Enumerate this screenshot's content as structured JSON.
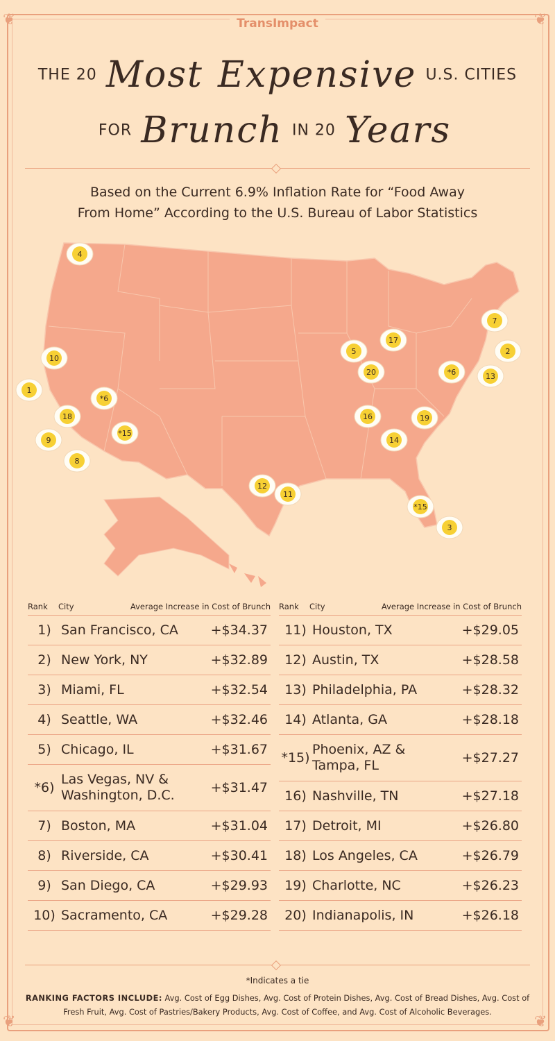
{
  "brand": "TransImpact",
  "title": {
    "line1_pre": "THE 20",
    "line1_script1": "Most",
    "line1_script2": "Expensive",
    "line1_post": "U.S. CITIES",
    "line2_pre": "FOR",
    "line2_script1": "Brunch",
    "line2_mid": "IN 20",
    "line2_script2": "Years"
  },
  "subtitle": {
    "line1": "Based on the Current 6.9% Inflation Rate for “Food Away",
    "line2": "From Home” According to the U.S. Bureau of Labor Statistics"
  },
  "map_markers": [
    "4",
    "7",
    "10",
    "1",
    "2",
    "5",
    "17",
    "20",
    "*6",
    "13",
    "*6",
    "18",
    "9",
    "8",
    "*15",
    "16",
    "19",
    "14",
    "12",
    "11",
    "*15",
    "3"
  ],
  "table_headers": {
    "rank": "Rank",
    "city": "City",
    "increase": "Average Increase in Cost of Brunch"
  },
  "left_rows": [
    {
      "rank": "1)",
      "city": "San Francisco, CA",
      "value": "+$34.37"
    },
    {
      "rank": "2)",
      "city": "New York, NY",
      "value": "+$32.89"
    },
    {
      "rank": "3)",
      "city": "Miami, FL",
      "value": "+$32.54"
    },
    {
      "rank": "4)",
      "city": "Seattle, WA",
      "value": "+$32.46"
    },
    {
      "rank": "5)",
      "city": "Chicago, IL",
      "value": "+$31.67"
    },
    {
      "rank": "*6)",
      "city": "Las Vegas, NV &",
      "city2": "Washington, D.C.",
      "value": "+$31.47"
    },
    {
      "rank": "7)",
      "city": "Boston, MA",
      "value": "+$31.04"
    },
    {
      "rank": "8)",
      "city": "Riverside, CA",
      "value": "+$30.41"
    },
    {
      "rank": "9)",
      "city": "San Diego, CA",
      "value": "+$29.93"
    },
    {
      "rank": "10)",
      "city": "Sacramento, CA",
      "value": "+$29.28"
    }
  ],
  "right_rows": [
    {
      "rank": "11)",
      "city": "Houston, TX",
      "value": "+$29.05"
    },
    {
      "rank": "12)",
      "city": "Austin, TX",
      "value": "+$28.58"
    },
    {
      "rank": "13)",
      "city": "Philadelphia, PA",
      "value": "+$28.32"
    },
    {
      "rank": "14)",
      "city": "Atlanta, GA",
      "value": "+$28.18"
    },
    {
      "rank": "*15)",
      "city": "Phoenix, AZ &",
      "city2": "Tampa, FL",
      "value": "+$27.27"
    },
    {
      "rank": "16)",
      "city": "Nashville, TN",
      "value": "+$27.18"
    },
    {
      "rank": "17)",
      "city": "Detroit, MI",
      "value": "+$26.80"
    },
    {
      "rank": "18)",
      "city": "Los Angeles, CA",
      "value": "+$26.79"
    },
    {
      "rank": "19)",
      "city": "Charlotte, NC",
      "value": "+$26.23"
    },
    {
      "rank": "20)",
      "city": "Indianapolis, IN",
      "value": "+$26.18"
    }
  ],
  "footnote": "*Indicates a tie",
  "factors_label": "RANKING FACTORS INCLUDE:",
  "factors_text": "Avg. Cost of Egg Dishes, Avg. Cost of Protein Dishes, Avg. Cost of Bread Dishes, Avg. Cost of Fresh Fruit, Avg. Cost of Pastries/Bakery Products, Avg. Cost of Coffee, and Avg. Cost of Alcoholic Beverages.",
  "colors": {
    "background": "#fde3c4",
    "map": "#f5a88c",
    "accent": "#e9a07d",
    "egg_yolk": "#f7d034",
    "egg_white": "#fffdf5"
  }
}
